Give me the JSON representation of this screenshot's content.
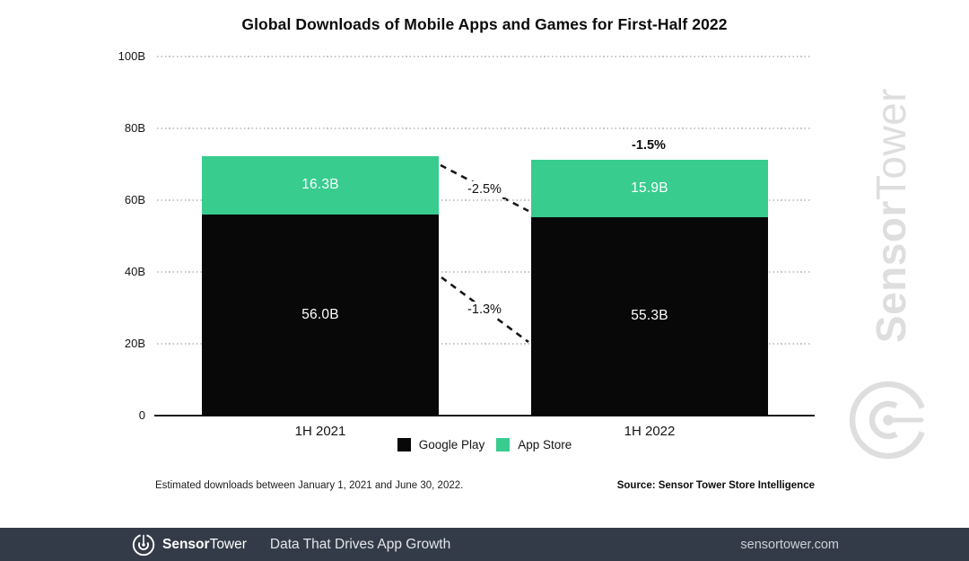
{
  "chart_data": {
    "type": "bar",
    "stacked": true,
    "title": "Global Downloads of Mobile Apps and Games for First-Half 2022",
    "unit": "B",
    "categories": [
      "1H 2021",
      "1H 2022"
    ],
    "series": [
      {
        "name": "Google Play",
        "color": "#080808",
        "values": [
          56.0,
          55.3
        ],
        "value_labels": [
          "56.0B",
          "55.3B"
        ]
      },
      {
        "name": "App Store",
        "color": "#38cc8f",
        "values": [
          16.3,
          15.9
        ],
        "value_labels": [
          "16.3B",
          "15.9B"
        ]
      }
    ],
    "totals": [
      72.3,
      71.2
    ],
    "ylim": [
      0,
      100
    ],
    "yticks": [
      {
        "label": "100B",
        "value": 100
      },
      {
        "label": "80B",
        "value": 80
      },
      {
        "label": "60B",
        "value": 60
      },
      {
        "label": "40B",
        "value": 40
      },
      {
        "label": "20B",
        "value": 20
      },
      {
        "label": "0",
        "value": 0
      }
    ],
    "grid": "horizontal-dotted",
    "legend_position": "bottom-center",
    "annotations": [
      {
        "id": "appstore-decline",
        "label": "-2.5%",
        "applies_to": "App Store",
        "style": "dashed-connector"
      },
      {
        "id": "googleplay-decline",
        "label": "-1.3%",
        "applies_to": "Google Play",
        "style": "dashed-connector"
      },
      {
        "id": "total-decline",
        "label": "-1.5%",
        "applies_to": "1H 2022 total",
        "style": "bold-label-above-bar"
      }
    ]
  },
  "notes": {
    "footnote": "Estimated downloads between January 1, 2021 and June 30, 2022.",
    "source": "Source: Sensor Tower Store Intelligence"
  },
  "watermark": {
    "brand_bold": "Sensor",
    "brand_light": "Tower",
    "color": "#dedede"
  },
  "footer": {
    "brand_bold": "Sensor",
    "brand_light": "Tower",
    "tagline": "Data That Drives App Growth",
    "website": "sensortower.com",
    "background": "#343b48"
  }
}
